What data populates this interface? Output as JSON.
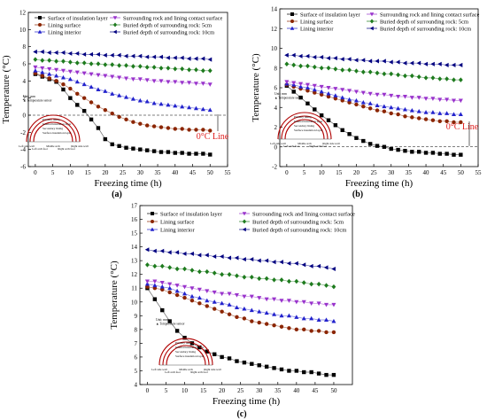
{
  "shared": {
    "xlabel": "Freezing time (h)",
    "ylabel": "Temperature (°C)",
    "legend": [
      "Surface of insulation layer",
      "Surrounding rock and lining contact surface",
      "Lining surface",
      "Buried depth of surrounding rock: 5cm",
      "Lining interior",
      "Buried depth of surrounding rock: 10cm"
    ],
    "legend_b_c": [
      "Surface of insulation layer",
      "Surrounding rock and lining contact surface",
      "Lining surface",
      "Buried depth of surrounding rock: 5cm",
      "Lining interior",
      "Buried depth of surrounding rock: 10cm"
    ],
    "inset_labels": {
      "top": [
        "Unit: mm",
        "▲ Temperature sensor"
      ],
      "layers": [
        "Primary lining",
        "Internal insulation layer",
        "Secondary lining",
        "Surface insulation layer"
      ],
      "bottom": [
        "Left side wall",
        "Left arch foot",
        "Middle arch",
        "Right arch foot",
        "Right side wall"
      ]
    }
  },
  "chart_data": [
    {
      "id": "a",
      "panel_label": "(a)",
      "type": "line",
      "x": [
        0,
        2,
        4,
        6,
        8,
        10,
        12,
        14,
        16,
        18,
        20,
        22,
        24,
        26,
        28,
        30,
        32,
        34,
        36,
        38,
        40,
        42,
        44,
        46,
        48,
        50
      ],
      "xlim": [
        -2,
        55
      ],
      "ylim": [
        -6,
        12
      ],
      "xticks": [
        0,
        5,
        10,
        15,
        20,
        25,
        30,
        35,
        40,
        45,
        50,
        55
      ],
      "yticks": [
        -6,
        -4,
        -2,
        0,
        2,
        4,
        6,
        8,
        10,
        12
      ],
      "grid": false,
      "legend_position": "top",
      "annotation": "0°C Line",
      "series": [
        {
          "name": "Surface of insulation layer",
          "marker": "square",
          "color": "#000000",
          "values": [
            4.8,
            4.5,
            4.2,
            3.9,
            3.0,
            2.0,
            1.2,
            0.5,
            -0.5,
            -1.5,
            -2.8,
            -3.4,
            -3.6,
            -3.8,
            -3.9,
            -4.0,
            -4.1,
            -4.2,
            -4.3,
            -4.3,
            -4.4,
            -4.4,
            -4.5,
            -4.5,
            -4.5,
            -4.6
          ]
        },
        {
          "name": "Lining surface",
          "marker": "circle",
          "color": "#8b2500",
          "values": [
            4.9,
            4.6,
            4.3,
            4.0,
            3.6,
            3.1,
            2.5,
            2.0,
            1.5,
            1.0,
            0.6,
            0.2,
            -0.2,
            -0.5,
            -0.8,
            -1.0,
            -1.2,
            -1.3,
            -1.4,
            -1.5,
            -1.6,
            -1.6,
            -1.7,
            -1.7,
            -1.7,
            -1.8
          ]
        },
        {
          "name": "Lining interior",
          "marker": "triangle-up",
          "color": "#2222cc",
          "values": [
            5.2,
            5.0,
            4.8,
            4.6,
            4.4,
            4.2,
            3.9,
            3.6,
            3.3,
            3.0,
            2.8,
            2.5,
            2.3,
            2.1,
            1.9,
            1.7,
            1.6,
            1.4,
            1.3,
            1.2,
            1.1,
            1.0,
            0.9,
            0.8,
            0.7,
            0.6
          ]
        },
        {
          "name": "Surrounding rock and lining contact surface",
          "marker": "triangle-down",
          "color": "#9933cc",
          "values": [
            5.6,
            5.5,
            5.4,
            5.3,
            5.2,
            5.1,
            5.0,
            4.9,
            4.8,
            4.7,
            4.6,
            4.5,
            4.4,
            4.3,
            4.2,
            4.2,
            4.1,
            4.0,
            4.0,
            3.9,
            3.9,
            3.8,
            3.8,
            3.7,
            3.7,
            3.6
          ]
        },
        {
          "name": "Buried depth of surrounding rock: 5cm",
          "marker": "diamond",
          "color": "#1e7b1e",
          "values": [
            6.5,
            6.4,
            6.4,
            6.3,
            6.3,
            6.2,
            6.1,
            6.1,
            6.0,
            6.0,
            5.9,
            5.9,
            5.8,
            5.8,
            5.7,
            5.7,
            5.6,
            5.6,
            5.5,
            5.5,
            5.4,
            5.4,
            5.3,
            5.3,
            5.2,
            5.2
          ]
        },
        {
          "name": "Buried depth of surrounding rock: 10cm",
          "marker": "triangle-left",
          "color": "#000080",
          "values": [
            7.4,
            7.4,
            7.3,
            7.3,
            7.3,
            7.2,
            7.2,
            7.1,
            7.1,
            7.1,
            7.0,
            7.0,
            7.0,
            6.9,
            6.9,
            6.9,
            6.8,
            6.8,
            6.8,
            6.7,
            6.7,
            6.7,
            6.6,
            6.6,
            6.6,
            6.5
          ]
        }
      ]
    },
    {
      "id": "b",
      "panel_label": "(b)",
      "type": "line",
      "x": [
        0,
        2,
        4,
        6,
        8,
        10,
        12,
        14,
        16,
        18,
        20,
        22,
        24,
        26,
        28,
        30,
        32,
        34,
        36,
        38,
        40,
        42,
        44,
        46,
        48,
        50
      ],
      "xlim": [
        -2,
        55
      ],
      "ylim": [
        -2,
        14
      ],
      "xticks": [
        0,
        5,
        10,
        15,
        20,
        25,
        30,
        35,
        40,
        45,
        50,
        55
      ],
      "yticks": [
        -2,
        0,
        2,
        4,
        6,
        8,
        10,
        12,
        14
      ],
      "grid": false,
      "legend_position": "top",
      "annotation": "0°C Line",
      "series": [
        {
          "name": "Surface of insulation layer",
          "marker": "square",
          "color": "#000000",
          "values": [
            6.2,
            5.6,
            5.0,
            4.4,
            3.8,
            3.2,
            2.7,
            2.2,
            1.7,
            1.3,
            0.9,
            0.6,
            0.3,
            0.1,
            0.0,
            -0.2,
            -0.3,
            -0.4,
            -0.5,
            -0.5,
            -0.6,
            -0.6,
            -0.7,
            -0.7,
            -0.8,
            -0.8
          ]
        },
        {
          "name": "Lining surface",
          "marker": "circle",
          "color": "#8b2500",
          "values": [
            6.3,
            6.1,
            5.9,
            5.7,
            5.5,
            5.3,
            5.1,
            4.9,
            4.7,
            4.5,
            4.3,
            4.1,
            3.9,
            3.7,
            3.6,
            3.4,
            3.3,
            3.1,
            3.0,
            2.9,
            2.8,
            2.7,
            2.6,
            2.6,
            2.5,
            2.5
          ]
        },
        {
          "name": "Lining interior",
          "marker": "triangle-up",
          "color": "#2222cc",
          "values": [
            6.4,
            6.3,
            6.1,
            6.0,
            5.8,
            5.6,
            5.4,
            5.2,
            5.0,
            4.8,
            4.7,
            4.5,
            4.4,
            4.2,
            4.1,
            4.0,
            3.9,
            3.8,
            3.7,
            3.6,
            3.5,
            3.5,
            3.4,
            3.4,
            3.3,
            3.3
          ]
        },
        {
          "name": "Surrounding rock and lining contact surface",
          "marker": "triangle-down",
          "color": "#9933cc",
          "values": [
            6.6,
            6.5,
            6.4,
            6.3,
            6.2,
            6.1,
            6.0,
            5.9,
            5.8,
            5.7,
            5.6,
            5.5,
            5.4,
            5.3,
            5.3,
            5.2,
            5.1,
            5.1,
            5.0,
            5.0,
            4.9,
            4.9,
            4.8,
            4.8,
            4.7,
            4.7
          ]
        },
        {
          "name": "Buried depth of surrounding rock: 5cm",
          "marker": "diamond",
          "color": "#1e7b1e",
          "values": [
            8.4,
            8.3,
            8.2,
            8.2,
            8.1,
            8.0,
            8.0,
            7.9,
            7.8,
            7.8,
            7.7,
            7.6,
            7.6,
            7.5,
            7.4,
            7.4,
            7.3,
            7.2,
            7.2,
            7.1,
            7.0,
            7.0,
            6.9,
            6.9,
            6.8,
            6.8
          ]
        },
        {
          "name": "Buried depth of surrounding rock: 10cm",
          "marker": "triangle-left",
          "color": "#000080",
          "values": [
            9.3,
            9.3,
            9.2,
            9.2,
            9.1,
            9.1,
            9.0,
            9.0,
            8.9,
            8.9,
            8.8,
            8.8,
            8.7,
            8.7,
            8.7,
            8.6,
            8.6,
            8.5,
            8.5,
            8.5,
            8.4,
            8.4,
            8.4,
            8.3,
            8.3,
            8.3
          ]
        }
      ]
    },
    {
      "id": "c",
      "panel_label": "(c)",
      "type": "line",
      "x": [
        0,
        2,
        4,
        6,
        8,
        10,
        12,
        14,
        16,
        18,
        20,
        22,
        24,
        26,
        28,
        30,
        32,
        34,
        36,
        38,
        40,
        42,
        44,
        46,
        48,
        50
      ],
      "xlim": [
        -2,
        55
      ],
      "ylim": [
        4,
        17
      ],
      "xticks": [
        0,
        5,
        10,
        15,
        20,
        25,
        30,
        35,
        40,
        45,
        50
      ],
      "yticks": [
        4,
        5,
        6,
        7,
        8,
        9,
        10,
        11,
        12,
        13,
        14,
        15,
        16,
        17
      ],
      "grid": false,
      "legend_position": "top",
      "annotation": "",
      "series": [
        {
          "name": "Surface of insulation layer",
          "marker": "square",
          "color": "#000000",
          "values": [
            11.0,
            10.2,
            9.4,
            8.6,
            7.9,
            7.4,
            7.0,
            6.7,
            6.4,
            6.2,
            6.0,
            5.9,
            5.7,
            5.6,
            5.5,
            5.4,
            5.3,
            5.2,
            5.1,
            5.0,
            5.0,
            4.9,
            4.9,
            4.8,
            4.7,
            4.7
          ]
        },
        {
          "name": "Lining surface",
          "marker": "circle",
          "color": "#8b2500",
          "values": [
            11.1,
            11.0,
            10.9,
            10.7,
            10.5,
            10.3,
            10.1,
            9.9,
            9.7,
            9.5,
            9.3,
            9.1,
            8.9,
            8.8,
            8.6,
            8.5,
            8.4,
            8.3,
            8.2,
            8.1,
            8.0,
            8.0,
            7.9,
            7.9,
            7.8,
            7.8
          ]
        },
        {
          "name": "Lining interior",
          "marker": "triangle-up",
          "color": "#2222cc",
          "values": [
            11.3,
            11.2,
            11.1,
            11.0,
            10.8,
            10.6,
            10.4,
            10.3,
            10.1,
            10.0,
            9.9,
            9.8,
            9.6,
            9.5,
            9.4,
            9.3,
            9.2,
            9.1,
            9.0,
            9.0,
            8.9,
            8.8,
            8.8,
            8.7,
            8.7,
            8.6
          ]
        },
        {
          "name": "Surrounding rock and lining contact surface",
          "marker": "triangle-down",
          "color": "#9933cc",
          "values": [
            11.5,
            11.5,
            11.4,
            11.3,
            11.2,
            11.1,
            11.0,
            10.9,
            10.8,
            10.7,
            10.6,
            10.6,
            10.5,
            10.4,
            10.4,
            10.3,
            10.2,
            10.2,
            10.1,
            10.1,
            10.0,
            10.0,
            9.9,
            9.9,
            9.8,
            9.8
          ]
        },
        {
          "name": "Buried depth of surrounding rock: 5cm",
          "marker": "diamond",
          "color": "#1e7b1e",
          "values": [
            12.7,
            12.6,
            12.6,
            12.5,
            12.4,
            12.4,
            12.3,
            12.2,
            12.2,
            12.1,
            12.0,
            12.0,
            11.9,
            11.8,
            11.8,
            11.7,
            11.7,
            11.6,
            11.6,
            11.5,
            11.5,
            11.4,
            11.3,
            11.3,
            11.2,
            11.1
          ]
        },
        {
          "name": "Buried depth of surrounding rock: 10cm",
          "marker": "triangle-left",
          "color": "#000080",
          "values": [
            13.8,
            13.7,
            13.7,
            13.6,
            13.6,
            13.5,
            13.5,
            13.4,
            13.4,
            13.3,
            13.3,
            13.2,
            13.2,
            13.1,
            13.1,
            13.0,
            13.0,
            12.9,
            12.9,
            12.8,
            12.8,
            12.7,
            12.6,
            12.6,
            12.5,
            12.4
          ]
        }
      ]
    }
  ]
}
